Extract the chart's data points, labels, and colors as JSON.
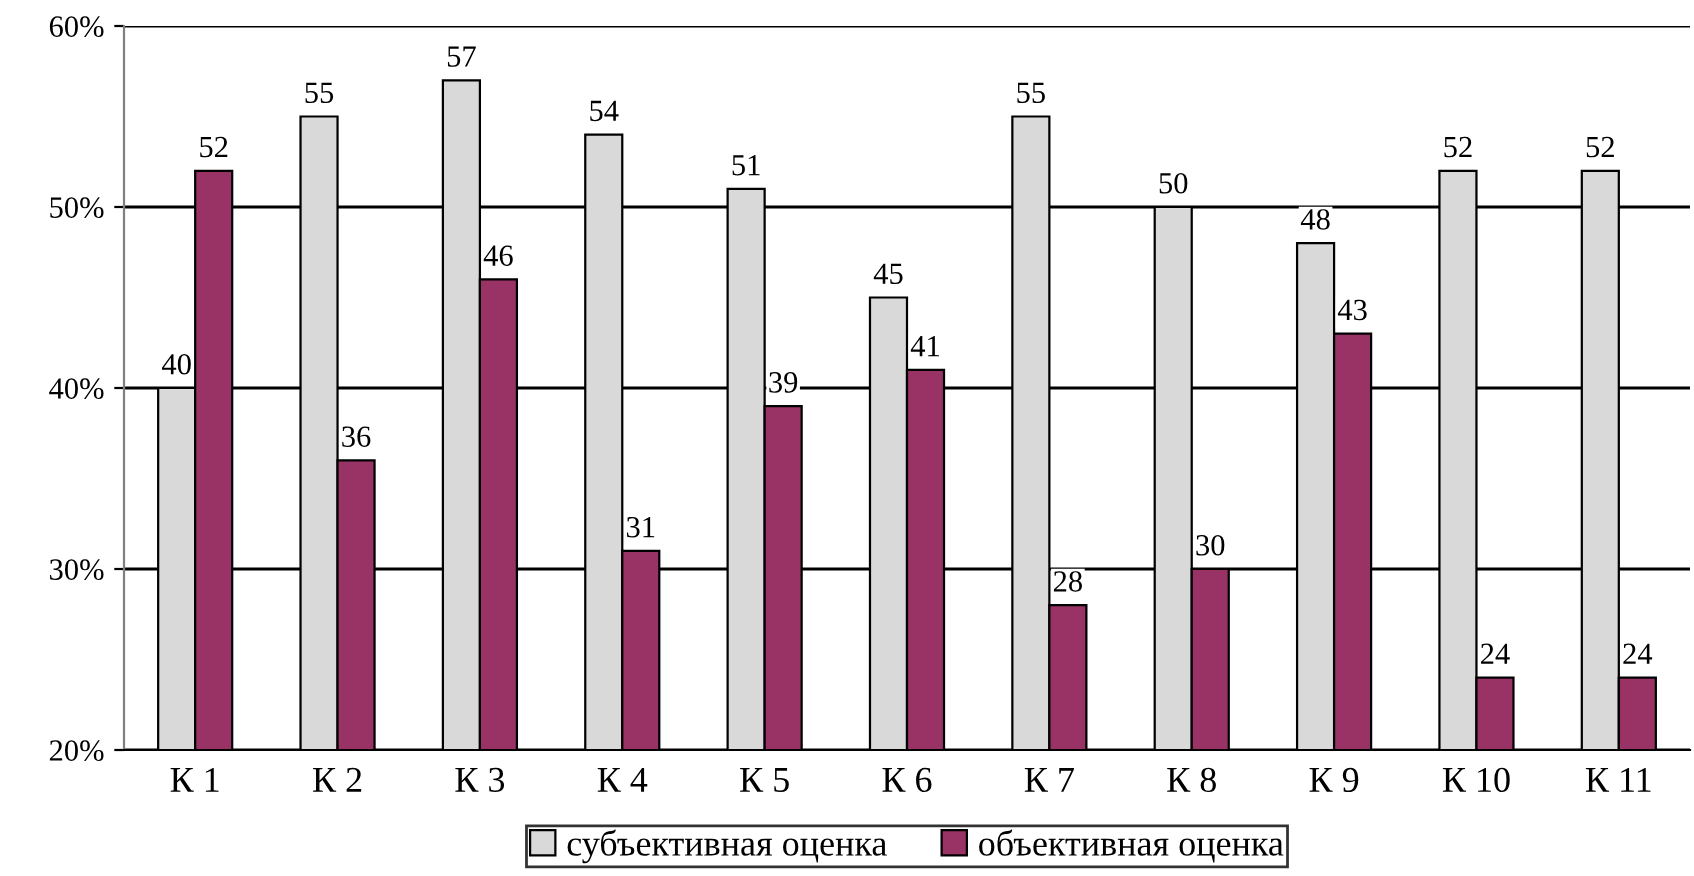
{
  "chart_data": {
    "type": "bar",
    "categories": [
      "К 1",
      "К 2",
      "К 3",
      "К 4",
      "К 5",
      "К 6",
      "К 7",
      "К 8",
      "К 9",
      "К 10",
      "К 11"
    ],
    "series": [
      {
        "name": "субъективная оценка",
        "color": "#d9d9d9",
        "values": [
          40,
          55,
          57,
          54,
          51,
          45,
          55,
          50,
          48,
          52,
          52
        ]
      },
      {
        "name": "объективная оценка",
        "color": "#993366",
        "values": [
          52,
          36,
          46,
          31,
          39,
          41,
          28,
          30,
          43,
          24,
          24
        ]
      }
    ],
    "ylim": [
      20,
      60
    ],
    "yticks": [
      {
        "value": 20,
        "label": "20%"
      },
      {
        "value": 30,
        "label": "30%"
      },
      {
        "value": 40,
        "label": "40%"
      },
      {
        "value": 50,
        "label": "50%"
      },
      {
        "value": 60,
        "label": "60%"
      }
    ],
    "grid": "y",
    "legend": "bottom",
    "data_labels": true
  }
}
